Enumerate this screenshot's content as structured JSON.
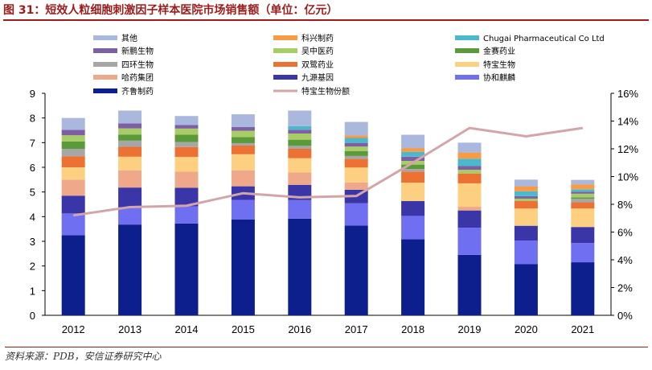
{
  "title": "图 31：短效人粒细胞刺激因子样本医院市场销售额（单位：亿元）",
  "source": "资料来源：PDB，安信证券研究中心",
  "chart_data": {
    "type": "bar",
    "stacked": true,
    "categories": [
      "2012",
      "2013",
      "2014",
      "2015",
      "2016",
      "2017",
      "2018",
      "2019",
      "2020",
      "2021"
    ],
    "ylim": [
      0,
      9
    ],
    "y_ticks": [
      "0",
      "1",
      "2",
      "3",
      "4",
      "5",
      "6",
      "7",
      "8",
      "9"
    ],
    "y2lim": [
      0,
      16
    ],
    "y2_ticks": [
      "0%",
      "2%",
      "4%",
      "6%",
      "8%",
      "10%",
      "12%",
      "14%",
      "16%"
    ],
    "legend_placement": "top",
    "series": [
      {
        "name": "齐鲁制药",
        "color": "#0d1f8c",
        "values": [
          3.25,
          3.68,
          3.72,
          3.88,
          3.92,
          3.64,
          3.08,
          2.45,
          2.08,
          2.15
        ]
      },
      {
        "name": "协和麒麟",
        "color": "#6f6ff2",
        "values": [
          0.88,
          0.7,
          0.7,
          0.8,
          0.75,
          0.9,
          0.95,
          1.1,
          0.95,
          0.78
        ]
      },
      {
        "name": "九源基因",
        "color": "#3b36a8",
        "values": [
          0.72,
          0.8,
          0.75,
          0.55,
          0.62,
          0.55,
          0.6,
          0.7,
          0.6,
          0.65
        ]
      },
      {
        "name": "哈药集团",
        "color": "#f0a88a",
        "values": [
          0.65,
          0.7,
          0.65,
          0.65,
          0.5,
          0.3,
          0.0,
          0.15,
          0.0,
          0.0
        ]
      },
      {
        "name": "特宝生物",
        "color": "#fcd080",
        "values": [
          0.5,
          0.55,
          0.6,
          0.65,
          0.58,
          0.6,
          0.75,
          0.95,
          0.7,
          0.75
        ]
      },
      {
        "name": "双鹭药业",
        "color": "#ec7133",
        "values": [
          0.45,
          0.4,
          0.4,
          0.35,
          0.38,
          0.35,
          0.45,
          0.4,
          0.3,
          0.25
        ]
      },
      {
        "name": "四环生物",
        "color": "#a6a6a6",
        "values": [
          0.3,
          0.25,
          0.2,
          0.1,
          0.12,
          0.12,
          0.1,
          0.0,
          0.0,
          0.15
        ]
      },
      {
        "name": "金赛药业",
        "color": "#5a9a3a",
        "values": [
          0.3,
          0.25,
          0.3,
          0.25,
          0.25,
          0.2,
          0.18,
          0.0,
          0.0,
          0.05
        ]
      },
      {
        "name": "吴中医药",
        "color": "#a8cc66",
        "values": [
          0.25,
          0.25,
          0.25,
          0.25,
          0.25,
          0.18,
          0.15,
          0.15,
          0.1,
          0.15
        ]
      },
      {
        "name": "新鹏生物",
        "color": "#7e5fa6",
        "values": [
          0.22,
          0.2,
          0.15,
          0.15,
          0.15,
          0.15,
          0.17,
          0.15,
          0.1,
          0.08
        ]
      },
      {
        "name": "Chugai Pharmaceutical Co Ltd",
        "color": "#4bb8cc",
        "values": [
          0.0,
          0.0,
          0.0,
          0.0,
          0.15,
          0.2,
          0.2,
          0.3,
          0.2,
          0.1
        ]
      },
      {
        "name": "科兴制药",
        "color": "#f99a45",
        "values": [
          0.0,
          0.0,
          0.0,
          0.0,
          0.0,
          0.1,
          0.15,
          0.25,
          0.2,
          0.2
        ]
      },
      {
        "name": "其他",
        "color": "#a9b8dc",
        "values": [
          0.48,
          0.52,
          0.36,
          0.52,
          0.63,
          0.55,
          0.54,
          0.4,
          0.27,
          0.18
        ]
      }
    ],
    "line_series": {
      "name": "特宝生物份额",
      "color": "#d4a5a8",
      "axis": "right",
      "values": [
        7.2,
        7.8,
        7.9,
        8.8,
        8.5,
        8.6,
        11.0,
        13.5,
        12.9,
        13.5
      ]
    }
  }
}
